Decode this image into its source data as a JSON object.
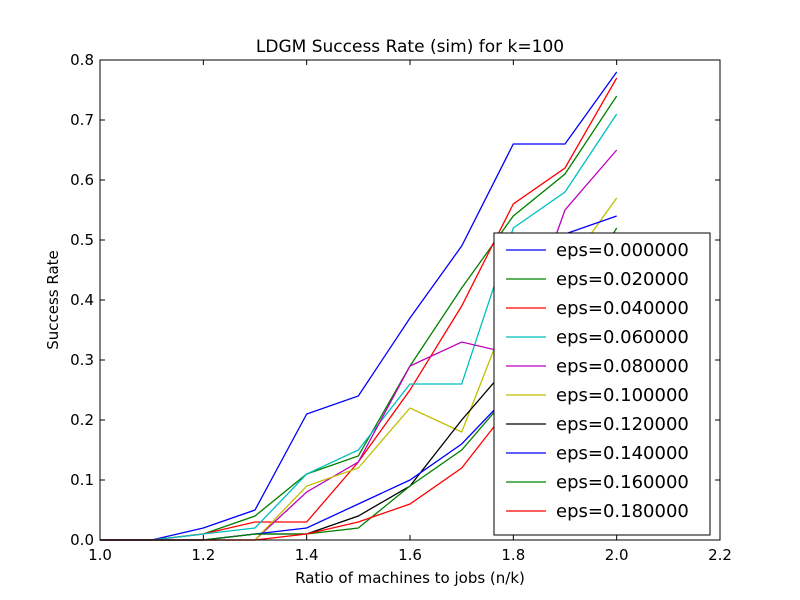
{
  "chart_data": {
    "type": "line",
    "title": "LDGM Success Rate (sim) for k=100",
    "xlabel": "Ratio of machines to jobs (n/k)",
    "ylabel": "Success Rate",
    "xlim": [
      1.0,
      2.2
    ],
    "ylim": [
      0.0,
      0.8
    ],
    "x_ticks": [
      "1.0",
      "1.2",
      "1.4",
      "1.6",
      "1.8",
      "2.0",
      "2.2"
    ],
    "y_ticks": [
      "0.0",
      "0.1",
      "0.2",
      "0.3",
      "0.4",
      "0.5",
      "0.6",
      "0.7",
      "0.8"
    ],
    "grid": false,
    "legend_position": "lower-right",
    "x": [
      1.0,
      1.1,
      1.2,
      1.3,
      1.4,
      1.5,
      1.6,
      1.7,
      1.8,
      1.9,
      2.0
    ],
    "series": [
      {
        "name": "eps=0.000000",
        "color": "#0000ff",
        "values": [
          0.0,
          0.0,
          0.02,
          0.05,
          0.21,
          0.24,
          0.37,
          0.49,
          0.66,
          0.66,
          0.78
        ]
      },
      {
        "name": "eps=0.020000",
        "color": "#008000",
        "values": [
          0.0,
          0.0,
          0.01,
          0.04,
          0.11,
          0.14,
          0.29,
          0.42,
          0.54,
          0.61,
          0.74
        ]
      },
      {
        "name": "eps=0.040000",
        "color": "#ff0000",
        "values": [
          0.0,
          0.0,
          0.01,
          0.03,
          0.03,
          0.13,
          0.25,
          0.39,
          0.56,
          0.62,
          0.77
        ]
      },
      {
        "name": "eps=0.060000",
        "color": "#00bfbf",
        "values": [
          0.0,
          0.0,
          0.01,
          0.02,
          0.11,
          0.15,
          0.26,
          0.26,
          0.52,
          0.58,
          0.71
        ]
      },
      {
        "name": "eps=0.080000",
        "color": "#bf00bf",
        "values": [
          0.0,
          0.0,
          0.0,
          0.0,
          0.08,
          0.13,
          0.29,
          0.33,
          0.31,
          0.55,
          0.65
        ]
      },
      {
        "name": "eps=0.100000",
        "color": "#bfbf00",
        "values": [
          0.0,
          0.0,
          0.0,
          0.0,
          0.09,
          0.12,
          0.22,
          0.18,
          0.4,
          0.45,
          0.57
        ]
      },
      {
        "name": "eps=0.120000",
        "color": "#000000",
        "values": [
          0.0,
          0.0,
          0.0,
          0.01,
          0.01,
          0.04,
          0.09,
          0.2,
          0.3,
          0.42,
          0.5
        ]
      },
      {
        "name": "eps=0.140000",
        "color": "#0000ff",
        "values": [
          0.0,
          0.0,
          0.0,
          0.01,
          0.02,
          0.06,
          0.1,
          0.16,
          0.25,
          0.51,
          0.54
        ]
      },
      {
        "name": "eps=0.160000",
        "color": "#008000",
        "values": [
          0.0,
          0.0,
          0.0,
          0.01,
          0.01,
          0.02,
          0.09,
          0.15,
          0.25,
          0.38,
          0.52
        ]
      },
      {
        "name": "eps=0.180000",
        "color": "#ff0000",
        "values": [
          0.0,
          0.0,
          0.0,
          0.0,
          0.01,
          0.03,
          0.06,
          0.12,
          0.23,
          0.35,
          0.5
        ]
      }
    ]
  }
}
